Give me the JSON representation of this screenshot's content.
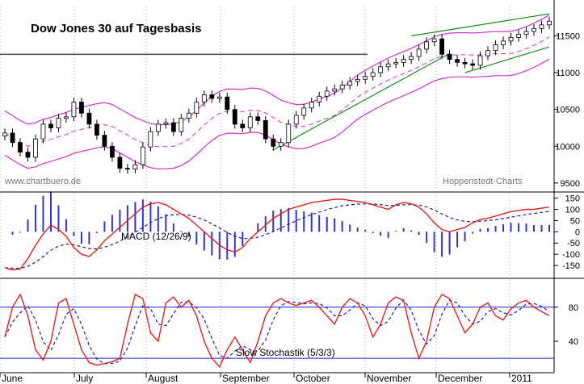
{
  "chart_data": [
    {
      "type": "line",
      "panel": "price",
      "title": "Dow Jones 30 auf Tagesbasis",
      "watermark_left": "www.chartbuero.de",
      "watermark_right": "Hoppenstedt-Charts",
      "ylim": [
        9400,
        11900
      ],
      "yticks": [
        9500,
        10000,
        10500,
        11000,
        11500
      ],
      "months": [
        "June",
        "July",
        "August",
        "September",
        "October",
        "November",
        "December",
        "2011"
      ],
      "close": [
        10180,
        10050,
        9920,
        9850,
        10100,
        10300,
        10250,
        10380,
        10400,
        10600,
        10450,
        10300,
        10150,
        10000,
        9850,
        9700,
        9690,
        9750,
        9990,
        10200,
        10300,
        10320,
        10200,
        10380,
        10450,
        10600,
        10700,
        10650,
        10670,
        10500,
        10300,
        10250,
        10400,
        10350,
        10100,
        10000,
        10050,
        10300,
        10420,
        10520,
        10600,
        10680,
        10750,
        10780,
        10830,
        10880,
        10910,
        10950,
        11000,
        11080,
        11120,
        11140,
        11180,
        11220,
        11320,
        11420,
        11460,
        11250,
        11180,
        11140,
        11120,
        11100,
        11230,
        11300,
        11380,
        11430,
        11480,
        11520,
        11560,
        11600,
        11650,
        11700
      ],
      "resistance_level": 11250,
      "colors": {
        "bands": "#cc33cc",
        "trend": "#228822",
        "level": "#555555",
        "candles": "#000000"
      }
    },
    {
      "type": "line",
      "panel": "macd",
      "label": "MACD (12/26/9)",
      "ylim": [
        -200,
        170
      ],
      "yticks": [
        150,
        100,
        50,
        0,
        -50,
        -100,
        -150
      ],
      "macd": [
        -160,
        -170,
        -165,
        -120,
        -60,
        -10,
        30,
        10,
        -20,
        -70,
        -100,
        -110,
        -80,
        -40,
        -10,
        20,
        50,
        80,
        110,
        125,
        130,
        120,
        100,
        80,
        60,
        30,
        0,
        -30,
        -60,
        -80,
        -90,
        -70,
        -30,
        0,
        30,
        60,
        80,
        100,
        110,
        120,
        130,
        135,
        140,
        145,
        145,
        140,
        135,
        130,
        120,
        110,
        100,
        120,
        130,
        125,
        110,
        80,
        40,
        10,
        0,
        10,
        20,
        40,
        55,
        60,
        70,
        80,
        90,
        95,
        100,
        100,
        105,
        110
      ],
      "colors": {
        "macd": "#dd2222",
        "signal": "#2222aa",
        "histogram": "#3333cc"
      }
    },
    {
      "type": "line",
      "panel": "stochastic",
      "label": "Slow Stochastik (5/3/3)",
      "ylim": [
        5,
        112
      ],
      "yticks": [
        80,
        40
      ],
      "hlines": [
        80,
        20
      ],
      "k": [
        45,
        80,
        95,
        70,
        30,
        18,
        40,
        85,
        90,
        60,
        30,
        15,
        12,
        14,
        16,
        20,
        60,
        95,
        90,
        50,
        40,
        85,
        92,
        80,
        88,
        70,
        40,
        20,
        10,
        30,
        45,
        30,
        15,
        40,
        70,
        85,
        90,
        85,
        82,
        85,
        88,
        80,
        70,
        60,
        80,
        90,
        85,
        70,
        45,
        60,
        85,
        92,
        88,
        50,
        20,
        40,
        80,
        95,
        90,
        70,
        50,
        60,
        80,
        85,
        70,
        65,
        78,
        85,
        88,
        80,
        75,
        70
      ],
      "colors": {
        "k": "#dd2222",
        "d": "#2222aa",
        "lines": "#2222cc"
      }
    }
  ]
}
